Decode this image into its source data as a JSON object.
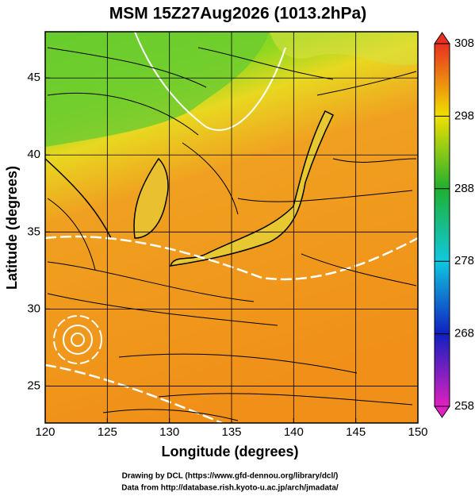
{
  "chart_data": {
    "type": "map",
    "title": "MSM 15Z27Aug2026 (1013.2hPa)",
    "x_label": "Longitude (degrees)",
    "y_label": "Latitude  (degrees)",
    "xlim": [
      120,
      150
    ],
    "ylim": [
      22.6,
      48
    ],
    "xticks": [
      120,
      125,
      130,
      135,
      140,
      145,
      150
    ],
    "yticks": [
      25,
      30,
      35,
      40,
      45
    ],
    "grid": true,
    "colorbar": {
      "lim": [
        258,
        308
      ],
      "ticks": [
        258,
        268,
        278,
        288,
        298,
        308
      ],
      "colors": [
        "#e020c0",
        "#1020c0",
        "#10c8e0",
        "#20b030",
        "#f0e000",
        "#e83020"
      ]
    },
    "footer": [
      "Drawing by DCL (https://www.gfd-dennou.org/library/dcl/)",
      "Data from http://database.rish.kyoto-u.ac.jp/arch/jmadata/"
    ]
  }
}
